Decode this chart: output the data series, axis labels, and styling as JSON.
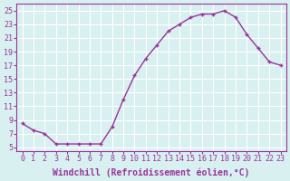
{
  "x": [
    0,
    1,
    2,
    3,
    4,
    5,
    6,
    7,
    8,
    9,
    10,
    11,
    12,
    13,
    14,
    15,
    16,
    17,
    18,
    19,
    20,
    21,
    22,
    23
  ],
  "y": [
    8.5,
    7.5,
    7.0,
    5.5,
    5.5,
    5.5,
    5.5,
    5.5,
    8.0,
    12.0,
    15.5,
    18.0,
    20.0,
    22.0,
    23.0,
    24.0,
    24.5,
    24.5,
    25.0,
    24.0,
    21.5,
    19.5,
    17.5,
    17.0
  ],
  "line_color": "#993399",
  "marker": "P",
  "marker_size": 3,
  "xlabel": "Windchill (Refroidissement éolien,°C)",
  "xlabel_fontsize": 7,
  "ylabel_ticks": [
    5,
    7,
    9,
    11,
    13,
    15,
    17,
    19,
    21,
    23,
    25
  ],
  "xtick_labels": [
    "0",
    "1",
    "2",
    "3",
    "4",
    "5",
    "6",
    "7",
    "8",
    "9",
    "10",
    "11",
    "12",
    "13",
    "14",
    "15",
    "16",
    "17",
    "18",
    "19",
    "20",
    "21",
    "22",
    "23"
  ],
  "ylim": [
    4.5,
    26
  ],
  "xlim": [
    -0.5,
    23.5
  ],
  "bg_color": "#d8f0f0",
  "grid_color": "#ffffff",
  "tick_color": "#993399",
  "tick_fontsize": 6,
  "line_width": 1.0
}
